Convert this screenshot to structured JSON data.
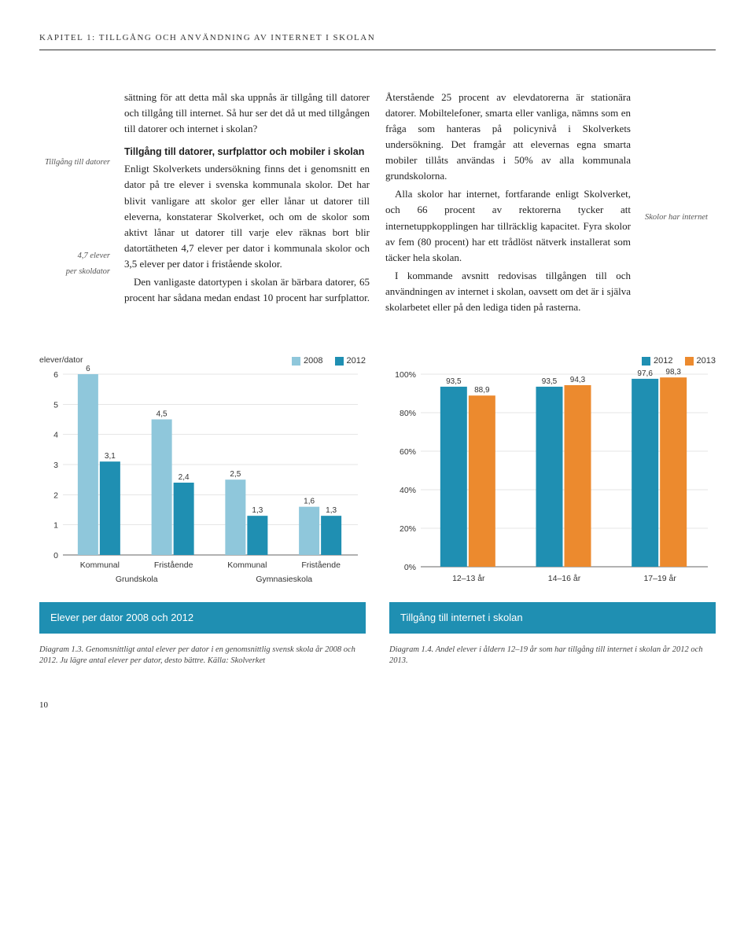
{
  "header": "kapitel 1: tillgång och användning av internet i skolan",
  "marginLeft": {
    "note1": "Tillgång till datorer",
    "note2a": "4,7 elever",
    "note2b": "per skoldator"
  },
  "marginRight": {
    "note1": "Skolor har internet"
  },
  "body": {
    "p1": "sättning för att detta mål ska uppnås är tillgång till datorer och tillgång till internet. Så hur ser det då ut med tillgången till datorer och internet i skolan?",
    "sub1": "Tillgång till datorer, surfplattor och mobiler i skolan",
    "p2": "Enligt Skolverkets undersökning finns det i genomsnitt en dator på tre elever i svenska kommunala skolor. Det har blivit vanligare att skolor ger eller lånar ut datorer till eleverna, konstaterar Skolverket, och om de skolor som aktivt lånar ut datorer till varje elev räknas bort blir datortätheten 4,7 elever per dator i kommunala skolor och 3,5 elever per dator i fristående skolor.",
    "p3": "Den vanligaste datortypen i skolan är bärbara datorer, 65 procent har sådana medan endast 10 procent har surfplattor. Återstående 25 procent av elevdatorerna är stationära datorer. Mobiltelefoner, smarta eller vanliga, nämns som en fråga som hanteras på policynivå i Skolverkets undersökning. Det framgår att elevernas egna smarta mobiler tillåts användas i 50% av alla kommunala grundskolorna.",
    "p4": "Alla skolor har internet, fortfarande enligt Skolverket, och 66 procent av rektorerna tycker att internetuppkopplingen har tillräcklig kapacitet. Fyra skolor av fem (80 procent) har ett trådlöst nätverk installerat som täcker hela skolan.",
    "p5": "I kommande avsnitt redovisas tillgången till och användningen av internet i skolan, oavsett om det är i själva skolarbetet eller på den lediga tiden på rasterna."
  },
  "chart1": {
    "type": "bar",
    "yAxisTitle": "elever/dator",
    "yMax": 6,
    "yTicks": [
      0,
      1,
      2,
      3,
      4,
      5,
      6
    ],
    "legend": [
      {
        "label": "2008",
        "color": "#8fc7db"
      },
      {
        "label": "2012",
        "color": "#1f8fb2"
      }
    ],
    "groups": [
      {
        "cat": "Kommunal",
        "bars": [
          {
            "v": 6,
            "label": "6",
            "color": "#8fc7db"
          },
          {
            "v": 3.1,
            "label": "3,1",
            "color": "#1f8fb2"
          }
        ]
      },
      {
        "cat": "Fristående",
        "bars": [
          {
            "v": 4.5,
            "label": "4,5",
            "color": "#8fc7db"
          },
          {
            "v": 2.4,
            "label": "2,4",
            "color": "#1f8fb2"
          }
        ]
      },
      {
        "cat": "Kommunal",
        "bars": [
          {
            "v": 2.5,
            "label": "2,5",
            "color": "#8fc7db"
          },
          {
            "v": 1.3,
            "label": "1,3",
            "color": "#1f8fb2"
          }
        ]
      },
      {
        "cat": "Fristående",
        "bars": [
          {
            "v": 1.6,
            "label": "1,6",
            "color": "#8fc7db"
          },
          {
            "v": 1.3,
            "label": "1,3",
            "color": "#1f8fb2"
          }
        ]
      }
    ],
    "superGroups": [
      "Grundskola",
      "Gymnasieskola"
    ],
    "titleBar": "Elever per dator 2008 och 2012",
    "caption": "Diagram 1.3. Genomsnittligt antal elever per dator i en genomsnittlig svensk skola år 2008 och 2012. Ju lägre antal elever per dator, desto bättre. Källa: Skolverket",
    "colors": {
      "grid": "#cccccc",
      "axis": "#666666",
      "bg": "#ffffff"
    }
  },
  "chart2": {
    "type": "bar",
    "yMax": 100,
    "yTicks": [
      0,
      20,
      40,
      60,
      80,
      100
    ],
    "yTickLabels": [
      "0%",
      "20%",
      "40%",
      "60%",
      "80%",
      "100%"
    ],
    "legend": [
      {
        "label": "2012",
        "color": "#1f8fb2"
      },
      {
        "label": "2013",
        "color": "#ec8a2e"
      }
    ],
    "groups": [
      {
        "cat": "12–13 år",
        "bars": [
          {
            "v": 93.5,
            "label": "93,5",
            "color": "#1f8fb2"
          },
          {
            "v": 88.9,
            "label": "88,9",
            "color": "#ec8a2e"
          }
        ]
      },
      {
        "cat": "14–16 år",
        "bars": [
          {
            "v": 93.5,
            "label": "93,5",
            "color": "#1f8fb2"
          },
          {
            "v": 94.3,
            "label": "94,3",
            "color": "#ec8a2e"
          }
        ]
      },
      {
        "cat": "17–19 år",
        "bars": [
          {
            "v": 97.6,
            "label": "97,6",
            "color": "#1f8fb2"
          },
          {
            "v": 98.3,
            "label": "98,3",
            "color": "#ec8a2e"
          }
        ]
      }
    ],
    "titleBar": "Tillgång till internet i skolan",
    "caption": "Diagram 1.4. Andel elever i åldern 12–19 år som har tillgång till internet i skolan år 2012 och 2013.",
    "colors": {
      "grid": "#cccccc",
      "axis": "#666666",
      "bg": "#ffffff"
    }
  },
  "pageNumber": "10"
}
